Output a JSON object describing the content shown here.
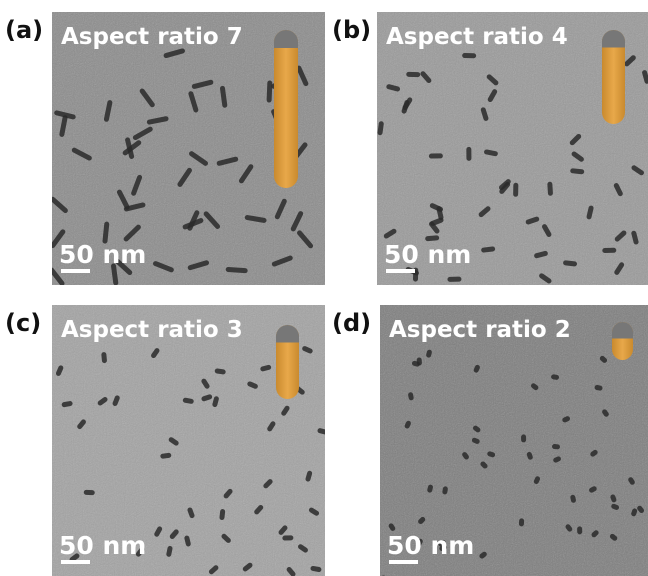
{
  "panels": [
    {
      "label": "(a)",
      "title": "Aspect ratio 7",
      "scale_bar": "50 nm"
    },
    {
      "label": "(b)",
      "title": "Aspect ratio 4",
      "scale_bar": "50 nm"
    },
    {
      "label": "(c)",
      "title": "Aspect ratio 3",
      "scale_bar": "50 nm"
    },
    {
      "label": "(d)",
      "title": "Aspect ratio 2",
      "scale_bar": "50 nm"
    }
  ]
}
